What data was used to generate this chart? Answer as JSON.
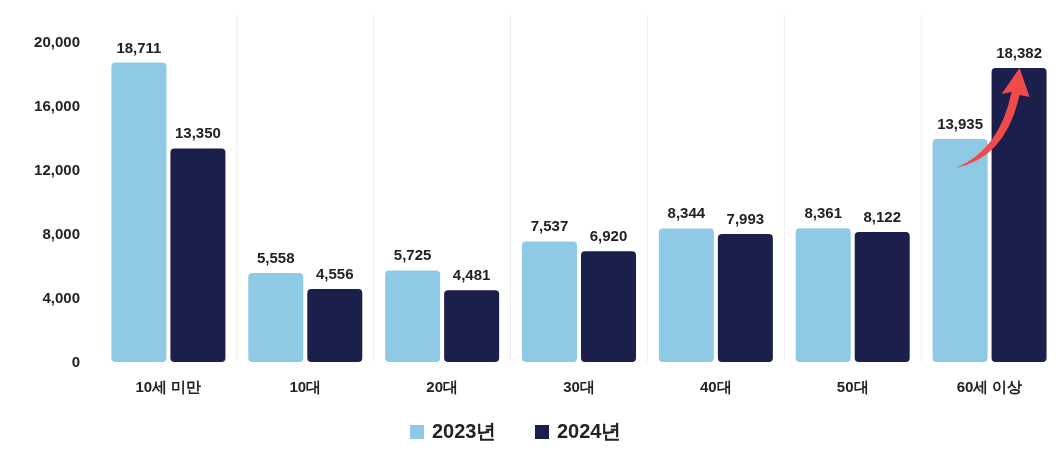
{
  "chart_data": {
    "type": "bar",
    "categories": [
      "10세 미만",
      "10대",
      "20대",
      "30대",
      "40대",
      "50대",
      "60세 이상"
    ],
    "series": [
      {
        "name": "2023년",
        "color": "#8ecae6",
        "values": [
          18711,
          5558,
          5725,
          7537,
          8344,
          8361,
          13935
        ],
        "value_labels": [
          "18,711",
          "5,558",
          "5,725",
          "7,537",
          "8,344",
          "8,361",
          "13,935"
        ]
      },
      {
        "name": "2024년",
        "color": "#1b1f4b",
        "values": [
          13350,
          4556,
          4481,
          6920,
          7993,
          8122,
          18382
        ],
        "value_labels": [
          "13,350",
          "4,556",
          "4,481",
          "6,920",
          "7,993",
          "8,122",
          "18,382"
        ]
      }
    ],
    "ylim": [
      0,
      20000
    ],
    "yticks": [
      {
        "value": 0,
        "label": "0"
      },
      {
        "value": 4000,
        "label": "4,000"
      },
      {
        "value": 8000,
        "label": "8,000"
      },
      {
        "value": 12000,
        "label": "12,000"
      },
      {
        "value": 16000,
        "label": "16,000"
      },
      {
        "value": 20000,
        "label": "20,000"
      }
    ],
    "legend": "bottom",
    "grid": "x"
  }
}
